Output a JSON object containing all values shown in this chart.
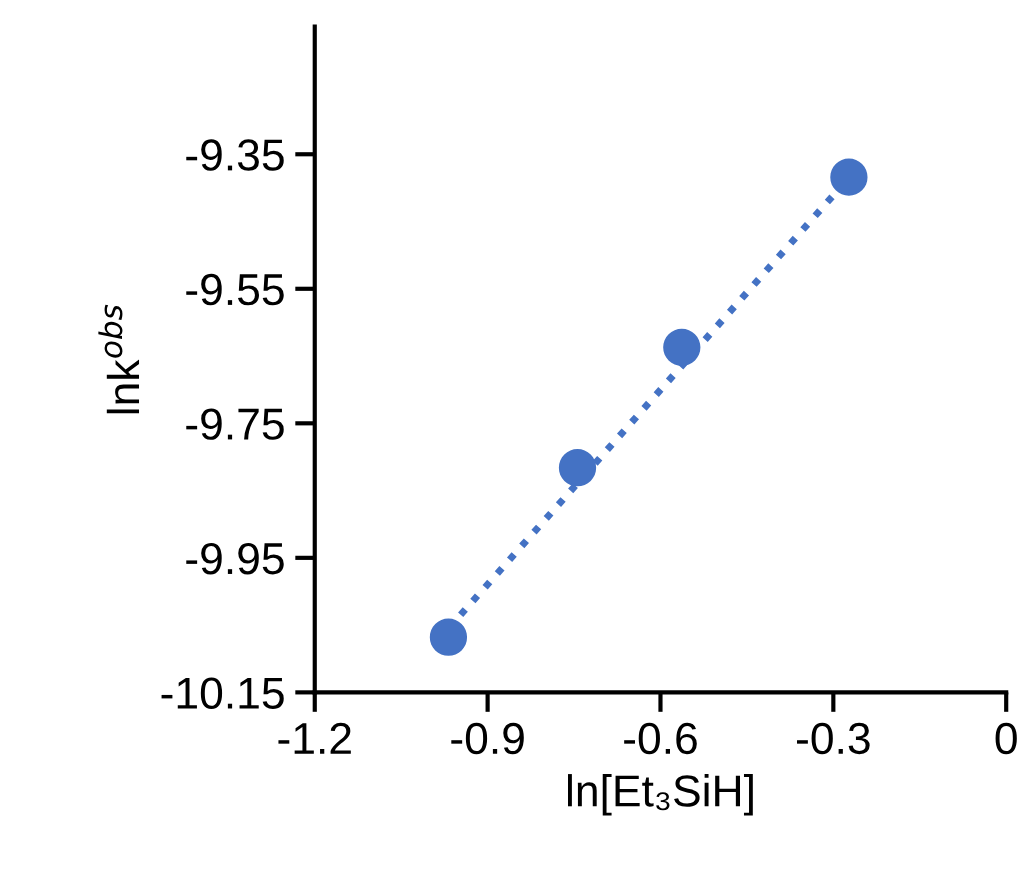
{
  "chart_data": {
    "type": "scatter",
    "xlabel": "ln[Et₃SiH]",
    "ylabel": "lnk$^{obs}$",
    "x": [
      -0.968,
      -0.744,
      -0.563,
      -0.273
    ],
    "series": [
      {
        "color": "#4472c4",
        "marker": "circle",
        "values": [
          -10.068,
          -9.816,
          -9.637,
          -9.384
        ]
      },
      {
        "type": "line",
        "color": "#4472c4",
        "line_style": "dotted",
        "x": [
          -0.968,
          -0.273
        ],
        "values": [
          -10.055,
          -9.385
        ]
      }
    ],
    "xlim": [
      -1.2,
      0
    ],
    "xticks": [
      -1.2,
      -0.9,
      -0.6,
      -0.3,
      0
    ],
    "ylim": [
      -10.15,
      -9.16
    ],
    "yticks": [
      -10.15,
      -9.95,
      -9.75,
      -9.55,
      -9.35
    ],
    "grid": false,
    "legend": false
  }
}
